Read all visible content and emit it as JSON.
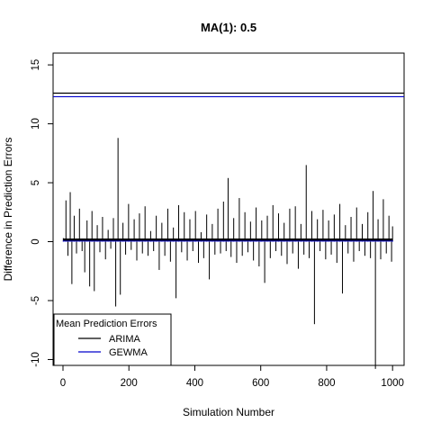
{
  "chart_data": {
    "type": "line",
    "title": "MA(1): 0.5",
    "xlabel": "Simulation Number",
    "ylabel": "Difference in Prediction Errors",
    "xlim": [
      -30,
      1035
    ],
    "ylim": [
      -10.5,
      16
    ],
    "x_ticks": [
      "0",
      "200",
      "400",
      "600",
      "800",
      "1000"
    ],
    "y_ticks": [
      "-10",
      "-5",
      "0",
      "5",
      "10",
      "15"
    ],
    "grid": false,
    "series": [
      {
        "name": "ARIMA",
        "color": "#000000",
        "note_shape": "needle series over simulations 1-1000",
        "x": [
          1,
          9,
          15,
          22,
          27,
          34,
          41,
          50,
          58,
          66,
          73,
          81,
          88,
          95,
          104,
          112,
          120,
          129,
          137,
          145,
          153,
          160,
          167,
          174,
          182,
          190,
          199,
          207,
          216,
          224,
          232,
          241,
          249,
          258,
          266,
          275,
          283,
          292,
          300,
          309,
          318,
          326,
          335,
          343,
          351,
          360,
          368,
          377,
          385,
          394,
          402,
          411,
          419,
          427,
          436,
          444,
          453,
          461,
          470,
          478,
          487,
          495,
          501,
          510,
          518,
          527,
          535,
          544,
          552,
          561,
          569,
          578,
          586,
          595,
          603,
          612,
          620,
          629,
          637,
          646,
          654,
          663,
          671,
          680,
          688,
          697,
          705,
          714,
          722,
          731,
          738,
          747,
          755,
          763,
          772,
          780,
          789,
          797,
          806,
          814,
          823,
          831,
          840,
          848,
          857,
          865,
          874,
          882,
          891,
          899,
          908,
          916,
          925,
          933,
          941,
          948,
          956,
          964,
          972,
          981,
          989,
          997,
          1000
        ],
        "y": [
          0.3,
          3.5,
          -1.2,
          4.2,
          -3.6,
          2.2,
          -1.0,
          2.8,
          -0.8,
          -2.6,
          1.8,
          -3.8,
          2.6,
          -4.2,
          1.4,
          -0.9,
          2.1,
          -1.5,
          1.0,
          -0.6,
          2.0,
          -5.5,
          8.8,
          -4.5,
          1.6,
          -1.1,
          3.2,
          -0.7,
          1.9,
          -1.6,
          2.4,
          -1.0,
          3.0,
          -1.2,
          0.9,
          -0.8,
          2.2,
          -2.4,
          1.6,
          -1.2,
          2.8,
          -1.7,
          1.2,
          -4.8,
          3.1,
          -0.9,
          2.5,
          -1.6,
          1.9,
          -0.8,
          2.6,
          -1.8,
          0.8,
          -1.4,
          2.3,
          -3.2,
          1.5,
          -1.1,
          2.8,
          -1.0,
          3.4,
          -0.8,
          5.4,
          -1.3,
          2.0,
          -1.8,
          3.7,
          -1.2,
          2.5,
          -0.9,
          1.7,
          -1.6,
          2.9,
          -2.1,
          1.8,
          -3.5,
          2.2,
          -1.4,
          3.1,
          -0.8,
          2.4,
          -1.2,
          1.6,
          -1.9,
          2.8,
          -1.0,
          3.0,
          -2.3,
          1.5,
          -1.1,
          6.5,
          -1.4,
          2.6,
          -7.0,
          1.9,
          -0.8,
          2.7,
          -1.5,
          1.8,
          -1.1,
          2.3,
          -1.8,
          3.2,
          -4.4,
          1.4,
          -1.0,
          2.1,
          -1.7,
          2.9,
          -0.8,
          1.5,
          -1.2,
          2.5,
          -1.4,
          4.3,
          -10.8,
          1.9,
          -1.5,
          3.6,
          -1.0,
          2.2,
          -1.7,
          1.3
        ]
      },
      {
        "name": "GEWMA",
        "color": "#0000CC",
        "note_shape": "needle series over simulations 1-1000",
        "x": [
          1,
          200,
          400,
          600,
          800,
          1000
        ],
        "y": [
          0.1,
          0.1,
          0.1,
          0.1,
          0.1,
          0.1
        ]
      }
    ],
    "reference_lines": [
      {
        "y": 12.6,
        "color": "#000000"
      },
      {
        "y": 12.3,
        "color": "#0000CC"
      }
    ],
    "legend": {
      "title": "Mean Prediction Errors",
      "placement": "bottom-left",
      "entries": [
        "ARIMA",
        "GEWMA"
      ]
    }
  }
}
